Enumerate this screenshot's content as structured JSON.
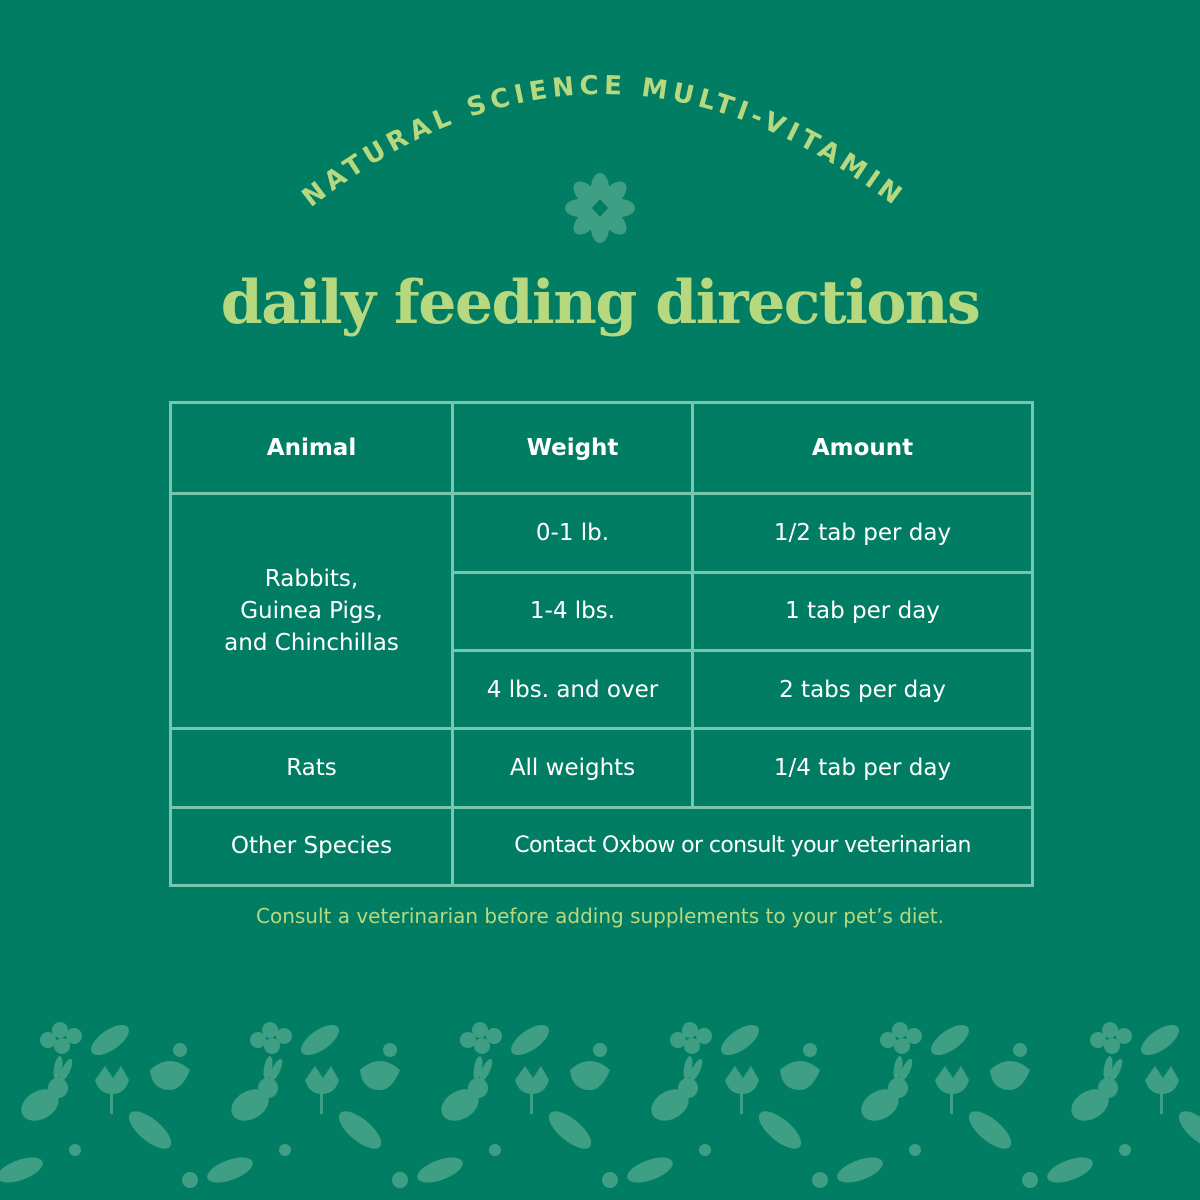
{
  "brand": {
    "arc_text": "NATURAL SCIENCE MULTI-VITAMIN",
    "colors": {
      "background": "#017d63",
      "accent": "#b6d97f",
      "table_border": "#78c6ad",
      "pattern": "#3f9f85"
    }
  },
  "title": "daily feeding directions",
  "icons": {
    "emblem": "flower-icon",
    "pattern": "bunny-and-leaf-pattern"
  },
  "table": {
    "headers": {
      "animal": "Animal",
      "weight": "Weight",
      "amount": "Amount"
    },
    "rows": {
      "small": {
        "animal_lines": [
          "Rabbits,",
          "Guinea Pigs,",
          "and Chinchillas"
        ],
        "entries": [
          {
            "weight": "0-1 lb.",
            "amount": "1/2 tab per day"
          },
          {
            "weight": "1-4 lbs.",
            "amount": "1 tab per day"
          },
          {
            "weight": "4 lbs. and over",
            "amount": "2 tabs per day"
          }
        ]
      },
      "rats": {
        "animal": "Rats",
        "weight": "All weights",
        "amount": "1/4 tab per day"
      },
      "other": {
        "animal": "Other Species",
        "note": "Contact Oxbow or consult your veterinarian"
      }
    }
  },
  "footnote": "Consult a veterinarian before adding supplements to your pet’s diet."
}
